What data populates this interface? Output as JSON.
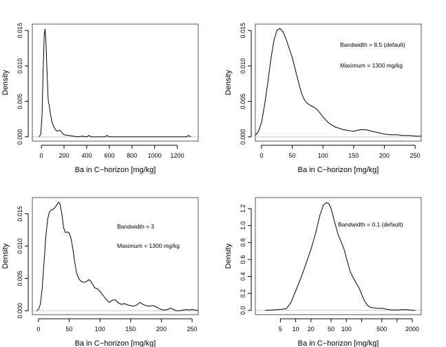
{
  "chart_data": [
    {
      "type": "line",
      "panel": "top-left",
      "title": "",
      "xlabel": "Ba in C−horizon [mg/kg]",
      "ylabel": "Density",
      "xscale": "linear",
      "xlim": [
        -80,
        1385
      ],
      "ylim": [
        -0.0006,
        0.0159
      ],
      "xticks": [
        0,
        200,
        400,
        600,
        800,
        1000,
        1200
      ],
      "xtick_labels": [
        "0",
        "200",
        "400",
        "600",
        "800",
        "1000",
        "1200"
      ],
      "yticks": [
        0.0,
        0.005,
        0.01,
        0.015
      ],
      "ytick_labels": [
        "0.000",
        "0.005",
        "0.010",
        "0.015"
      ],
      "annotations": [],
      "series": [
        {
          "name": "density",
          "x": [
            -20,
            -5,
            5,
            15,
            25,
            32,
            40,
            50,
            60,
            70,
            80,
            95,
            110,
            125,
            140,
            155,
            165,
            180,
            200,
            240,
            280,
            320,
            360,
            400,
            420,
            440,
            460,
            500,
            560,
            580,
            600,
            700,
            800,
            900,
            1000,
            1100,
            1200,
            1280,
            1300,
            1320
          ],
          "y": [
            0.0,
            0.0004,
            0.003,
            0.009,
            0.0145,
            0.0152,
            0.0135,
            0.009,
            0.0052,
            0.0043,
            0.0032,
            0.002,
            0.0014,
            0.001,
            0.0008,
            0.0009,
            0.0009,
            0.0006,
            0.0003,
            0.0002,
            0.0001,
            0.0,
            0.0001,
            0.0,
            0.0002,
            0.0,
            0.0,
            0.0,
            0.0,
            0.0002,
            0.0,
            0.0,
            0.0,
            0.0,
            0.0,
            0.0,
            0.0,
            0.0,
            0.0002,
            0.0
          ]
        }
      ]
    },
    {
      "type": "line",
      "panel": "top-right",
      "title": "",
      "xlabel": "Ba in C−horizon [mg/kg]",
      "ylabel": "Density",
      "xscale": "linear",
      "xlim": [
        -10,
        260
      ],
      "ylim": [
        -0.0006,
        0.0159
      ],
      "xticks": [
        0,
        50,
        100,
        150,
        200,
        250
      ],
      "xtick_labels": [
        "0",
        "50",
        "100",
        "150",
        "200",
        "250"
      ],
      "yticks": [
        0.0,
        0.005,
        0.01,
        0.015
      ],
      "ytick_labels": [
        "0.000",
        "0.005",
        "0.010",
        "0.015"
      ],
      "annotations": [
        "Bandwidth = 8.5  (default)",
        "Maximum = 1300 mg/kg"
      ],
      "series": [
        {
          "name": "density",
          "x": [
            -10,
            -5,
            0,
            5,
            10,
            15,
            20,
            25,
            30,
            35,
            40,
            45,
            50,
            55,
            60,
            65,
            70,
            75,
            80,
            85,
            90,
            95,
            100,
            110,
            120,
            130,
            140,
            150,
            160,
            170,
            180,
            190,
            200,
            210,
            220,
            230,
            240,
            250,
            260
          ],
          "y": [
            0.0002,
            0.0008,
            0.002,
            0.0045,
            0.0075,
            0.0108,
            0.0135,
            0.015,
            0.0153,
            0.0148,
            0.0138,
            0.0125,
            0.0112,
            0.0095,
            0.0078,
            0.0062,
            0.0052,
            0.0047,
            0.0044,
            0.0042,
            0.0039,
            0.0034,
            0.0028,
            0.0019,
            0.0014,
            0.0011,
            0.0009,
            0.0008,
            0.001,
            0.001,
            0.0008,
            0.0006,
            0.0004,
            0.0003,
            0.0003,
            0.0002,
            0.0002,
            0.0001,
            0.0001
          ]
        }
      ]
    },
    {
      "type": "line",
      "panel": "bottom-left",
      "title": "",
      "xlabel": "Ba in C−horizon [mg/kg]",
      "ylabel": "Density",
      "xscale": "linear",
      "xlim": [
        -10,
        260
      ],
      "ylim": [
        -0.0006,
        0.0175
      ],
      "xticks": [
        0,
        50,
        100,
        150,
        200,
        250
      ],
      "xtick_labels": [
        "0",
        "50",
        "100",
        "150",
        "200",
        "250"
      ],
      "yticks": [
        0.0,
        0.005,
        0.01,
        0.015
      ],
      "ytick_labels": [
        "0.000",
        "0.005",
        "0.010",
        "0.015"
      ],
      "annotations": [
        "Bandwidth = 3",
        "Maximum = 1300 mg/kg"
      ],
      "series": [
        {
          "name": "density",
          "x": [
            -3,
            0,
            3,
            6,
            9,
            12,
            15,
            18,
            21,
            24,
            27,
            30,
            33,
            35,
            38,
            41,
            44,
            47,
            50,
            53,
            56,
            59,
            62,
            66,
            70,
            74,
            78,
            82,
            85,
            88,
            92,
            96,
            100,
            105,
            110,
            115,
            120,
            125,
            130,
            135,
            140,
            145,
            150,
            155,
            160,
            165,
            170,
            175,
            180,
            185,
            190,
            195,
            200,
            205,
            210,
            215,
            220,
            225,
            230,
            235,
            240,
            245,
            250,
            255,
            260
          ],
          "y": [
            0.0,
            0.0002,
            0.001,
            0.0035,
            0.0075,
            0.0115,
            0.0142,
            0.0153,
            0.0156,
            0.0157,
            0.016,
            0.0164,
            0.0168,
            0.0165,
            0.015,
            0.0128,
            0.0121,
            0.0122,
            0.012,
            0.0112,
            0.0095,
            0.0075,
            0.0058,
            0.0049,
            0.0045,
            0.0044,
            0.0045,
            0.0048,
            0.0046,
            0.0041,
            0.0035,
            0.0034,
            0.003,
            0.0024,
            0.0018,
            0.0013,
            0.0016,
            0.0017,
            0.0012,
            0.001,
            0.0011,
            0.0009,
            0.0008,
            0.0007,
            0.0009,
            0.0013,
            0.001,
            0.0008,
            0.0007,
            0.0008,
            0.0007,
            0.0004,
            0.0002,
            0.0001,
            0.0002,
            0.0004,
            0.0002,
            0.0,
            0.0,
            0.0001,
            0.0002,
            0.0001,
            0.0002,
            0.0001,
            0.0
          ]
        }
      ]
    },
    {
      "type": "line",
      "panel": "bottom-right",
      "title": "",
      "xlabel": "Ba in C−horizon [mg/kg]",
      "ylabel": "Density",
      "xscale": "log10",
      "xlim": [
        1.6,
        3000
      ],
      "ylim": [
        -0.05,
        1.33
      ],
      "xticks": [
        5,
        10,
        20,
        50,
        100,
        200,
        500,
        1000,
        2000
      ],
      "xtick_labels": [
        "5",
        "10",
        "20",
        "50",
        "100",
        "",
        "500",
        "",
        "2000"
      ],
      "yticks": [
        0.0,
        0.2,
        0.4,
        0.6,
        0.8,
        1.0,
        1.2
      ],
      "ytick_labels": [
        "0.0",
        "0.2",
        "0.4",
        "0.6",
        "0.8",
        "1.0",
        "1.2"
      ],
      "annotations": [
        "Bandwidth = 0.1  (default)"
      ],
      "series": [
        {
          "name": "density",
          "x": [
            2.5,
            3.5,
            5,
            6.5,
            8,
            10,
            13,
            16,
            20,
            25,
            30,
            35,
            40,
            45,
            50,
            60,
            70,
            80,
            90,
            100,
            120,
            150,
            180,
            220,
            260,
            300,
            400,
            500,
            600,
            800,
            1000,
            1300,
            1600,
            2000,
            2300
          ],
          "y": [
            0.0,
            0.005,
            0.012,
            0.02,
            0.09,
            0.23,
            0.4,
            0.55,
            0.72,
            0.92,
            1.12,
            1.24,
            1.27,
            1.26,
            1.2,
            1.02,
            0.88,
            0.8,
            0.72,
            0.62,
            0.45,
            0.34,
            0.26,
            0.13,
            0.06,
            0.035,
            0.025,
            0.025,
            0.015,
            0.005,
            0.005,
            0.01,
            0.008,
            0.003,
            0.002
          ]
        }
      ]
    }
  ]
}
